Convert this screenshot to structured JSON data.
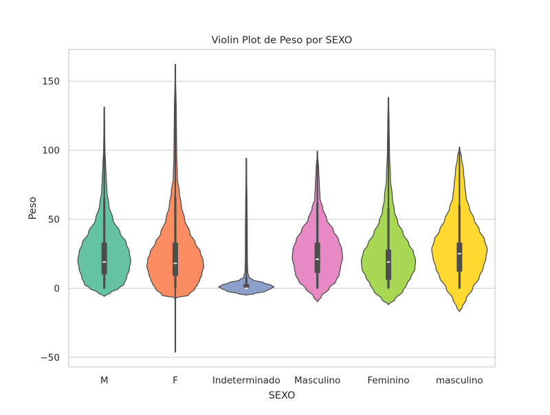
{
  "chart_data": {
    "type": "violin",
    "title": "Violin Plot de Peso por SEXO",
    "xlabel": "SEXO",
    "ylabel": "Peso",
    "ylim": [
      -57,
      173
    ],
    "yticks": [
      -50,
      0,
      50,
      100,
      150
    ],
    "ytick_labels": [
      "−50",
      "0",
      "50",
      "100",
      "150"
    ],
    "grid": true,
    "grid_axis": "y",
    "categories": [
      "M",
      "F",
      "Indeterminado",
      "Masculino",
      "Feminino",
      "masculino"
    ],
    "colors": [
      "#66c2a5",
      "#fc8d62",
      "#8da0cb",
      "#e78ac3",
      "#a6d854",
      "#ffd92f"
    ],
    "series": [
      {
        "name": "M",
        "summary": {
          "whisker_low": 0,
          "q1": 10,
          "median": 19,
          "q3": 33,
          "whisker_high": 65,
          "min": 0,
          "max": 131
        },
        "profile": [
          [
            -6,
            0
          ],
          [
            -3,
            10
          ],
          [
            0,
            22
          ],
          [
            3,
            30
          ],
          [
            8,
            34
          ],
          [
            14,
            38
          ],
          [
            20,
            40
          ],
          [
            26,
            38
          ],
          [
            33,
            33
          ],
          [
            40,
            24
          ],
          [
            50,
            13
          ],
          [
            60,
            7
          ],
          [
            70,
            4
          ],
          [
            80,
            3
          ],
          [
            90,
            2
          ],
          [
            100,
            1
          ],
          [
            115,
            0.6
          ],
          [
            131,
            0
          ]
        ]
      },
      {
        "name": "F",
        "summary": {
          "whisker_low": 0,
          "q1": 9,
          "median": 18,
          "q3": 33,
          "whisker_high": 66,
          "min": -46,
          "max": 162
        },
        "profile": [
          [
            -9,
            0
          ],
          [
            -7,
            1
          ],
          [
            -5,
            20
          ],
          [
            0,
            30
          ],
          [
            3,
            34
          ],
          [
            6,
            37
          ],
          [
            10,
            40
          ],
          [
            16,
            43
          ],
          [
            20,
            42
          ],
          [
            26,
            38
          ],
          [
            33,
            30
          ],
          [
            40,
            22
          ],
          [
            50,
            14
          ],
          [
            60,
            9
          ],
          [
            70,
            6
          ],
          [
            80,
            3
          ],
          [
            100,
            2
          ],
          [
            125,
            1.5
          ],
          [
            162,
            0
          ]
        ]
      },
      {
        "name": "Indeterminado",
        "summary": {
          "whisker_low": 0,
          "q1": 0,
          "median": 0,
          "q3": 3,
          "whisker_high": 8,
          "min": 0,
          "max": 94
        },
        "profile": [
          [
            -5,
            0
          ],
          [
            -4,
            12
          ],
          [
            -2,
            30
          ],
          [
            0,
            38
          ],
          [
            1,
            42
          ],
          [
            2,
            38
          ],
          [
            4,
            26
          ],
          [
            6,
            10
          ],
          [
            8,
            4
          ],
          [
            12,
            2
          ],
          [
            20,
            1.5
          ],
          [
            40,
            1.4
          ],
          [
            60,
            1
          ],
          [
            94,
            0
          ]
        ]
      },
      {
        "name": "Masculino",
        "summary": {
          "whisker_low": 0,
          "q1": 11,
          "median": 21,
          "q3": 33,
          "whisker_high": 62,
          "min": 0,
          "max": 99
        },
        "profile": [
          [
            -10,
            0
          ],
          [
            -6,
            6
          ],
          [
            0,
            18
          ],
          [
            5,
            28
          ],
          [
            10,
            33
          ],
          [
            15,
            35
          ],
          [
            22,
            38
          ],
          [
            28,
            37
          ],
          [
            35,
            32
          ],
          [
            42,
            24
          ],
          [
            50,
            14
          ],
          [
            58,
            8
          ],
          [
            65,
            4
          ],
          [
            75,
            3
          ],
          [
            85,
            2
          ],
          [
            99,
            0
          ]
        ]
      },
      {
        "name": "Feminino",
        "summary": {
          "whisker_low": 0,
          "q1": 6,
          "median": 19,
          "q3": 28,
          "whisker_high": 58,
          "min": 0,
          "max": 138
        },
        "profile": [
          [
            -12,
            0
          ],
          [
            -8,
            10
          ],
          [
            -2,
            22
          ],
          [
            3,
            28
          ],
          [
            8,
            34
          ],
          [
            14,
            40
          ],
          [
            20,
            41
          ],
          [
            26,
            38
          ],
          [
            32,
            31
          ],
          [
            40,
            22
          ],
          [
            48,
            14
          ],
          [
            56,
            9
          ],
          [
            65,
            6
          ],
          [
            80,
            3
          ],
          [
            100,
            1.5
          ],
          [
            120,
            1
          ],
          [
            138,
            0
          ]
        ]
      },
      {
        "name": "masculino",
        "summary": {
          "whisker_low": 0,
          "q1": 12,
          "median": 25,
          "q3": 33,
          "whisker_high": 60,
          "min": 0,
          "max": 102
        },
        "profile": [
          [
            -17,
            0
          ],
          [
            -14,
            4
          ],
          [
            -8,
            10
          ],
          [
            0,
            20
          ],
          [
            8,
            30
          ],
          [
            15,
            36
          ],
          [
            22,
            40
          ],
          [
            28,
            42
          ],
          [
            35,
            38
          ],
          [
            42,
            30
          ],
          [
            50,
            22
          ],
          [
            58,
            15
          ],
          [
            66,
            10
          ],
          [
            75,
            8
          ],
          [
            85,
            6
          ],
          [
            95,
            3
          ],
          [
            102,
            0
          ]
        ]
      }
    ]
  }
}
